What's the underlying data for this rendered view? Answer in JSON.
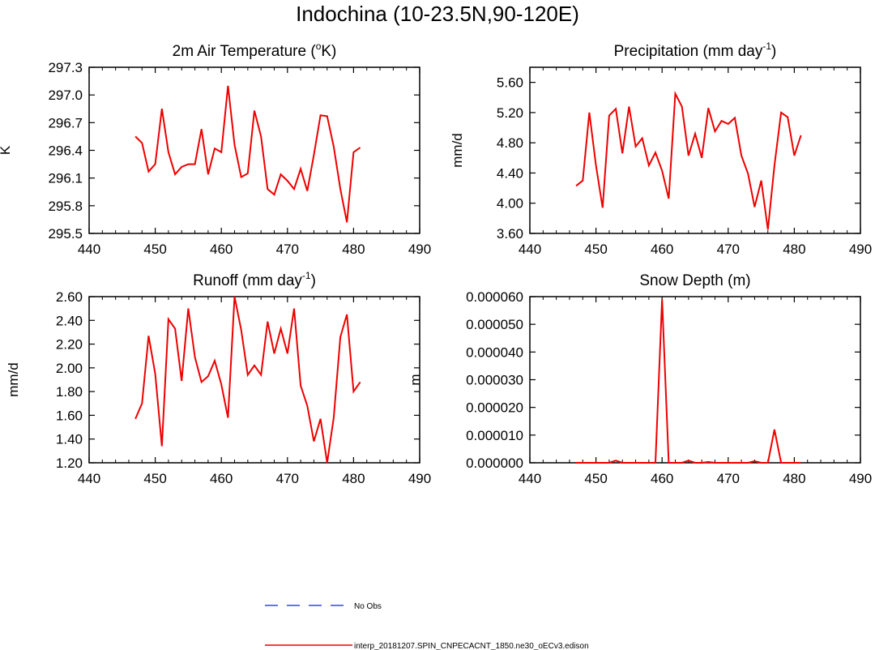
{
  "page": {
    "title": "Indochina (10-23.5N,90-120E)"
  },
  "colors": {
    "model": "#ee0000",
    "obs": "#3344ff",
    "axis": "#000000"
  },
  "legend": {
    "placement": "bottom-center",
    "items": [
      {
        "label": "No Obs",
        "color": "#3344ff",
        "style": "dashed"
      },
      {
        "label": "interp_20181207.SPIN_CNPECACNT_1850.ne30_oECv3.edison",
        "color": "#ee0000",
        "style": "solid"
      }
    ]
  },
  "chart_data": [
    {
      "type": "line",
      "title_parts": [
        "2m Air Temperature (",
        "o",
        "K)"
      ],
      "ylabel": "K",
      "xlim": [
        440,
        490
      ],
      "ylim": [
        295.5,
        297.3
      ],
      "xticks": [
        440,
        450,
        460,
        470,
        480,
        490
      ],
      "yticks": [
        295.5,
        295.8,
        296.1,
        296.4,
        296.7,
        297.0,
        297.3
      ],
      "ytick_labels": [
        "295.5",
        "295.8",
        "296.1",
        "296.4",
        "296.7",
        "297.0",
        "297.3"
      ],
      "series": [
        {
          "x": [
            447,
            448,
            449,
            450,
            451,
            452,
            453,
            454,
            455,
            456,
            457,
            458,
            459,
            460,
            461,
            462,
            463,
            464,
            465,
            466,
            467,
            468,
            469,
            470,
            471,
            472,
            473,
            474,
            475,
            476,
            477,
            478,
            479,
            480,
            481
          ],
          "values": [
            296.55,
            296.48,
            296.17,
            296.25,
            296.85,
            296.38,
            296.14,
            296.22,
            296.25,
            296.25,
            296.63,
            296.14,
            296.42,
            296.38,
            297.1,
            296.46,
            296.11,
            296.15,
            296.83,
            296.55,
            295.98,
            295.92,
            296.14,
            296.07,
            295.98,
            296.2,
            295.96,
            296.35,
            296.78,
            296.77,
            296.44,
            295.98,
            295.62,
            296.38,
            296.43
          ]
        }
      ]
    },
    {
      "type": "line",
      "title_parts": [
        "Precipitation (mm day",
        "-1",
        ")"
      ],
      "ylabel": "mm/d",
      "xlim": [
        440,
        490
      ],
      "ylim": [
        3.6,
        5.8
      ],
      "xticks": [
        440,
        450,
        460,
        470,
        480,
        490
      ],
      "yticks": [
        3.6,
        4.0,
        4.4,
        4.8,
        5.2,
        5.6
      ],
      "ytick_labels": [
        "3.60",
        "4.00",
        "4.40",
        "4.80",
        "5.20",
        "5.60"
      ],
      "series": [
        {
          "x": [
            447,
            448,
            449,
            450,
            451,
            452,
            453,
            454,
            455,
            456,
            457,
            458,
            459,
            460,
            461,
            462,
            463,
            464,
            465,
            466,
            467,
            468,
            469,
            470,
            471,
            472,
            473,
            474,
            475,
            476,
            477,
            478,
            479,
            480,
            481
          ],
          "values": [
            4.23,
            4.3,
            5.2,
            4.5,
            3.94,
            5.16,
            5.25,
            4.66,
            5.28,
            4.75,
            4.86,
            4.5,
            4.67,
            4.43,
            4.06,
            5.45,
            5.28,
            4.63,
            4.92,
            4.6,
            5.26,
            4.95,
            5.09,
            5.05,
            5.13,
            4.63,
            4.39,
            3.95,
            4.3,
            3.65,
            4.5,
            5.2,
            5.14,
            4.63,
            4.9
          ]
        }
      ]
    },
    {
      "type": "line",
      "title_parts": [
        "Runoff (mm day",
        "-1",
        ")"
      ],
      "ylabel": "mm/d",
      "xlim": [
        440,
        490
      ],
      "ylim": [
        1.2,
        2.6
      ],
      "xticks": [
        440,
        450,
        460,
        470,
        480,
        490
      ],
      "yticks": [
        1.2,
        1.4,
        1.6,
        1.8,
        2.0,
        2.2,
        2.4,
        2.6
      ],
      "ytick_labels": [
        "1.20",
        "1.40",
        "1.60",
        "1.80",
        "2.00",
        "2.20",
        "2.40",
        "2.60"
      ],
      "series": [
        {
          "x": [
            447,
            448,
            449,
            450,
            451,
            452,
            453,
            454,
            455,
            456,
            457,
            458,
            459,
            460,
            461,
            462,
            463,
            464,
            465,
            466,
            467,
            468,
            469,
            470,
            471,
            472,
            473,
            474,
            475,
            476,
            477,
            478,
            479,
            480,
            481
          ],
          "values": [
            1.57,
            1.7,
            2.27,
            1.95,
            1.34,
            2.41,
            2.33,
            1.89,
            2.5,
            2.09,
            1.88,
            1.93,
            2.06,
            1.86,
            1.58,
            2.6,
            2.32,
            1.94,
            2.02,
            1.94,
            2.39,
            2.12,
            2.33,
            2.12,
            2.5,
            1.85,
            1.68,
            1.38,
            1.57,
            1.2,
            1.58,
            2.26,
            2.45,
            1.8,
            1.88
          ]
        }
      ]
    },
    {
      "type": "line",
      "title_parts": [
        "Snow Depth (m)"
      ],
      "ylabel": "m",
      "xlim": [
        440,
        490
      ],
      "ylim": [
        0,
        6e-05
      ],
      "xticks": [
        440,
        450,
        460,
        470,
        480,
        490
      ],
      "yticks": [
        0,
        1e-05,
        2e-05,
        3e-05,
        4e-05,
        5e-05,
        6e-05
      ],
      "ytick_labels": [
        "0.000000",
        "0.000010",
        "0.000020",
        "0.000030",
        "0.000040",
        "0.000050",
        "0.000060"
      ],
      "series": [
        {
          "x": [
            447,
            448,
            449,
            450,
            451,
            452,
            453,
            454,
            455,
            456,
            457,
            458,
            459,
            460,
            461,
            462,
            463,
            464,
            465,
            466,
            467,
            468,
            469,
            470,
            471,
            472,
            473,
            474,
            475,
            476,
            477,
            478,
            479,
            480,
            481
          ],
          "values": [
            0,
            0,
            0,
            0,
            0,
            0,
            8e-07,
            0,
            0,
            0,
            0,
            0,
            0,
            5.9e-05,
            0,
            0,
            0,
            8e-07,
            0,
            0,
            3e-07,
            0,
            0,
            0,
            0,
            0,
            0,
            6e-07,
            0,
            0,
            1.2e-05,
            0,
            0,
            0,
            0
          ]
        }
      ]
    }
  ]
}
